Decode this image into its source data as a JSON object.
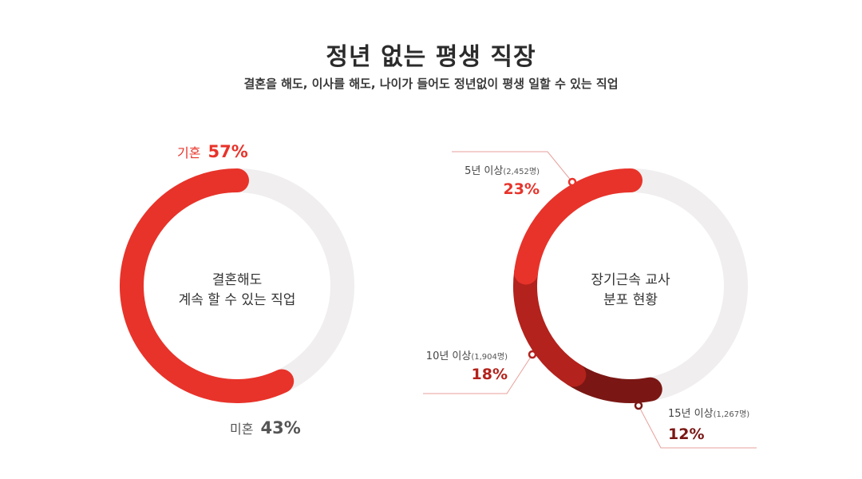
{
  "header": {
    "title": "정년 없는 평생 직장",
    "subtitle": "결혼을 해도, 이사를 해도, 나이가 들어도 정년없이 평생 일할 수 있는 직업"
  },
  "colors": {
    "track": "#f0eeef",
    "red": "#e8332a",
    "dark_red": "#b3221c",
    "maroon": "#7a1714",
    "gray_text": "#555555",
    "callout_line": "#e7a09b"
  },
  "chart_data": [
    {
      "type": "pie",
      "donut": true,
      "center_label": [
        "결혼해도",
        "계속 할 수 있는 직업"
      ],
      "slices": [
        {
          "name": "기혼",
          "percent_label": "57%",
          "value": 57,
          "color": "#e8332a"
        },
        {
          "name": "미혼",
          "percent_label": "43%",
          "value": 43,
          "color": "#f0eeef"
        }
      ]
    },
    {
      "type": "pie",
      "donut": true,
      "center_label": [
        "장기근속 교사",
        "분포 현황"
      ],
      "slices": [
        {
          "name": "5년 이상",
          "count_label": "(2,452명)",
          "count": 2452,
          "percent_label": "23%",
          "value": 23,
          "color": "#e8332a"
        },
        {
          "name": "10년 이상",
          "count_label": "(1,904명)",
          "count": 1904,
          "percent_label": "18%",
          "value": 18,
          "color": "#b3221c"
        },
        {
          "name": "15년 이상",
          "count_label": "(1,267명)",
          "count": 1267,
          "percent_label": "12%",
          "value": 12,
          "color": "#7a1714"
        }
      ]
    }
  ]
}
